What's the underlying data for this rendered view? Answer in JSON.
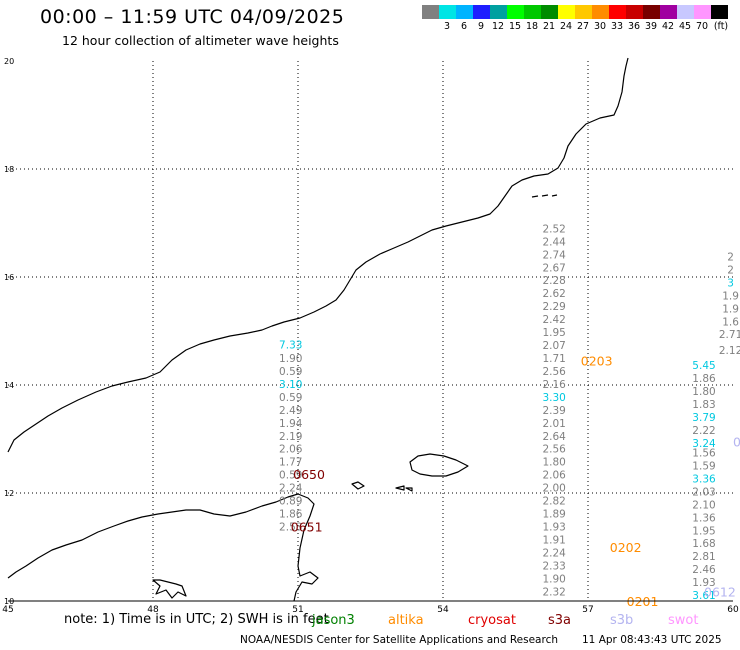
{
  "header": {
    "title": "00:00 – 11:59 UTC 04/09/2025",
    "subtitle": "12 hour collection of altimeter wave heights"
  },
  "scale": {
    "unit": "(ft)",
    "swatches": [
      {
        "color": "#808080",
        "label": ""
      },
      {
        "color": "#00e5e5",
        "label": "3"
      },
      {
        "color": "#00b4ff",
        "label": "6"
      },
      {
        "color": "#1e1eff",
        "label": "9"
      },
      {
        "color": "#00a0a0",
        "label": "12"
      },
      {
        "color": "#00ff00",
        "label": "15"
      },
      {
        "color": "#00c800",
        "label": "18"
      },
      {
        "color": "#008c00",
        "label": "21"
      },
      {
        "color": "#ffff00",
        "label": "24"
      },
      {
        "color": "#ffc800",
        "label": "27"
      },
      {
        "color": "#ff8c00",
        "label": "30"
      },
      {
        "color": "#ff0000",
        "label": "33"
      },
      {
        "color": "#c80000",
        "label": "36"
      },
      {
        "color": "#780000",
        "label": "39"
      },
      {
        "color": "#a000a0",
        "label": "42"
      },
      {
        "color": "#c8c8ff",
        "label": "45"
      },
      {
        "color": "#ff96ff",
        "label": "70"
      },
      {
        "color": "#000000",
        "label": ""
      }
    ]
  },
  "axes": {
    "lon_ticks": [
      {
        "lon": 45,
        "label": "45"
      },
      {
        "lon": 48,
        "label": "48"
      },
      {
        "lon": 51,
        "label": "51"
      },
      {
        "lon": 54,
        "label": "54"
      },
      {
        "lon": 57,
        "label": "57"
      },
      {
        "lon": 60,
        "label": "60"
      }
    ],
    "lat_ticks": [
      {
        "lat": 10,
        "label": "10"
      },
      {
        "lat": 12,
        "label": "12"
      },
      {
        "lat": 14,
        "label": "14"
      },
      {
        "lat": 16,
        "label": "16"
      },
      {
        "lat": 18,
        "label": "18"
      },
      {
        "lat": 20,
        "label": "20"
      }
    ],
    "lon_range": [
      45,
      60
    ],
    "lat_range": [
      10,
      20
    ]
  },
  "colors": {
    "gray": "#808080",
    "cyan": "#00c8e0",
    "orange": "#ff8c00",
    "darkred": "#800000",
    "lavender": "#b4b4f0"
  },
  "tracks": [
    {
      "lon": 50.85,
      "values": [
        {
          "lat": 14.75,
          "v": "7.33",
          "c": "cyan"
        },
        {
          "lat": 14.5,
          "v": "1.90",
          "c": "gray"
        },
        {
          "lat": 14.26,
          "v": "0.59",
          "c": "gray"
        },
        {
          "lat": 14.02,
          "v": "3.10",
          "c": "cyan"
        },
        {
          "lat": 13.78,
          "v": "0.59",
          "c": "gray"
        },
        {
          "lat": 13.54,
          "v": "2.49",
          "c": "gray"
        },
        {
          "lat": 13.3,
          "v": "1.94",
          "c": "gray"
        },
        {
          "lat": 13.06,
          "v": "2.19",
          "c": "gray"
        },
        {
          "lat": 12.82,
          "v": "2.06",
          "c": "gray"
        },
        {
          "lat": 12.58,
          "v": "1.77",
          "c": "gray"
        },
        {
          "lat": 12.34,
          "v": "0.59",
          "c": "gray"
        },
        {
          "lat": 12.1,
          "v": "2.24",
          "c": "gray"
        },
        {
          "lat": 11.86,
          "v": "0.89",
          "c": "gray"
        },
        {
          "lat": 11.62,
          "v": "1.86",
          "c": "gray"
        },
        {
          "lat": 11.38,
          "v": "2.53",
          "c": "gray"
        }
      ]
    },
    {
      "lon": 56.3,
      "values": [
        {
          "lat": 16.9,
          "v": "2.52",
          "c": "gray"
        },
        {
          "lat": 16.66,
          "v": "2.44",
          "c": "gray"
        },
        {
          "lat": 16.42,
          "v": "2.74",
          "c": "gray"
        },
        {
          "lat": 16.18,
          "v": "2.67",
          "c": "gray"
        },
        {
          "lat": 15.94,
          "v": "2.28",
          "c": "gray"
        },
        {
          "lat": 15.7,
          "v": "2.62",
          "c": "gray"
        },
        {
          "lat": 15.46,
          "v": "2.29",
          "c": "gray"
        },
        {
          "lat": 15.22,
          "v": "2.42",
          "c": "gray"
        },
        {
          "lat": 14.98,
          "v": "1.95",
          "c": "gray"
        },
        {
          "lat": 14.74,
          "v": "2.07",
          "c": "gray"
        },
        {
          "lat": 14.5,
          "v": "1.71",
          "c": "gray"
        },
        {
          "lat": 14.26,
          "v": "2.56",
          "c": "gray"
        },
        {
          "lat": 14.02,
          "v": "2.16",
          "c": "gray"
        },
        {
          "lat": 13.78,
          "v": "3.30",
          "c": "cyan"
        },
        {
          "lat": 13.54,
          "v": "2.39",
          "c": "gray"
        },
        {
          "lat": 13.3,
          "v": "2.01",
          "c": "gray"
        },
        {
          "lat": 13.06,
          "v": "2.64",
          "c": "gray"
        },
        {
          "lat": 12.82,
          "v": "2.56",
          "c": "gray"
        },
        {
          "lat": 12.58,
          "v": "1.80",
          "c": "gray"
        },
        {
          "lat": 12.34,
          "v": "2.06",
          "c": "gray"
        },
        {
          "lat": 12.1,
          "v": "2.00",
          "c": "gray"
        },
        {
          "lat": 11.86,
          "v": "2.82",
          "c": "gray"
        },
        {
          "lat": 11.62,
          "v": "1.89",
          "c": "gray"
        },
        {
          "lat": 11.38,
          "v": "1.93",
          "c": "gray"
        },
        {
          "lat": 11.14,
          "v": "1.91",
          "c": "gray"
        },
        {
          "lat": 10.9,
          "v": "2.24",
          "c": "gray"
        },
        {
          "lat": 10.66,
          "v": "2.33",
          "c": "gray"
        },
        {
          "lat": 10.42,
          "v": "1.90",
          "c": "gray"
        },
        {
          "lat": 10.18,
          "v": "2.32",
          "c": "gray"
        }
      ]
    },
    {
      "lon": 59.4,
      "values": [
        {
          "lat": 14.37,
          "v": "5.45",
          "c": "cyan"
        },
        {
          "lat": 14.13,
          "v": "1.86",
          "c": "gray"
        },
        {
          "lat": 13.89,
          "v": "1.80",
          "c": "gray"
        },
        {
          "lat": 13.65,
          "v": "1.83",
          "c": "gray"
        },
        {
          "lat": 13.41,
          "v": "3.79",
          "c": "cyan"
        },
        {
          "lat": 13.17,
          "v": "2.22",
          "c": "gray"
        },
        {
          "lat": 12.93,
          "v": "3.24",
          "c": "cyan"
        },
        {
          "lat": 12.75,
          "v": "1.56",
          "c": "gray"
        },
        {
          "lat": 12.51,
          "v": "1.59",
          "c": "gray"
        },
        {
          "lat": 12.27,
          "v": "3.36",
          "c": "cyan"
        },
        {
          "lat": 12.03,
          "v": "2.03",
          "c": "gray"
        },
        {
          "lat": 11.79,
          "v": "2.10",
          "c": "gray"
        },
        {
          "lat": 11.55,
          "v": "1.36",
          "c": "gray"
        },
        {
          "lat": 11.31,
          "v": "1.95",
          "c": "gray"
        },
        {
          "lat": 11.07,
          "v": "1.68",
          "c": "gray"
        },
        {
          "lat": 10.83,
          "v": "2.81",
          "c": "gray"
        },
        {
          "lat": 10.59,
          "v": "2.46",
          "c": "gray"
        },
        {
          "lat": 10.35,
          "v": "1.93",
          "c": "gray"
        },
        {
          "lat": 10.11,
          "v": "3.61",
          "c": "cyan"
        }
      ]
    },
    {
      "lon": 59.95,
      "values": [
        {
          "lat": 16.38,
          "v": "2",
          "c": "gray"
        },
        {
          "lat": 16.14,
          "v": "2",
          "c": "gray"
        },
        {
          "lat": 15.9,
          "v": "3",
          "c": "cyan"
        },
        {
          "lat": 15.66,
          "v": "1.9",
          "c": "gray"
        },
        {
          "lat": 15.42,
          "v": "1.9",
          "c": "gray"
        },
        {
          "lat": 15.18,
          "v": "1.6",
          "c": "gray"
        },
        {
          "lat": 14.94,
          "v": "2.71",
          "c": "gray"
        },
        {
          "lat": 14.65,
          "v": "2.12",
          "c": "gray"
        }
      ]
    }
  ],
  "time_labels": [
    {
      "lat": 14.45,
      "lon": 56.85,
      "t": "0203",
      "c": "orange"
    },
    {
      "lat": 12.35,
      "lon": 50.9,
      "t": "0650",
      "c": "darkred"
    },
    {
      "lat": 11.38,
      "lon": 50.85,
      "t": "0651",
      "c": "darkred"
    },
    {
      "lat": 11.0,
      "lon": 57.45,
      "t": "0202",
      "c": "orange"
    },
    {
      "lat": 10.0,
      "lon": 57.8,
      "t": "0201",
      "c": "orange"
    },
    {
      "lat": 10.18,
      "lon": 59.4,
      "t": "0612",
      "c": "lavender"
    },
    {
      "lat": 12.95,
      "lon": 60.0,
      "t": "0",
      "c": "lavender"
    }
  ],
  "footer": {
    "note": "note:  1) Time is in UTC;  2) SWH is in feet",
    "sources": [
      {
        "name": "jason3",
        "color": "#008000"
      },
      {
        "name": "altika",
        "color": "#ff8c00"
      },
      {
        "name": "cryosat",
        "color": "#e00000"
      },
      {
        "name": "s3a",
        "color": "#800000"
      },
      {
        "name": "s3b",
        "color": "#b4b4f0"
      },
      {
        "name": "swot",
        "color": "#ff96ff"
      }
    ],
    "credit": "NOAA/NESDIS Center for Satellite Applications and Research",
    "timestamp": "11 Apr 08:43:43 UTC 2025"
  }
}
